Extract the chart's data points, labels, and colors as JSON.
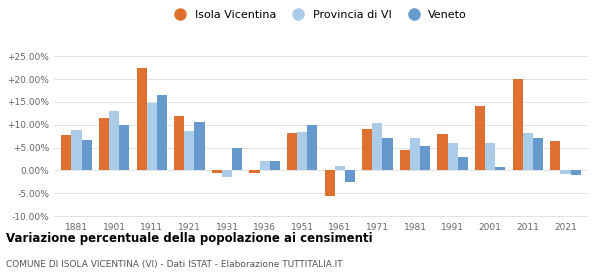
{
  "years": [
    1881,
    1901,
    1911,
    1921,
    1931,
    1936,
    1951,
    1961,
    1971,
    1981,
    1991,
    2001,
    2011,
    2021
  ],
  "isola_vicentina": [
    7.7,
    11.5,
    22.5,
    12.0,
    -0.5,
    -0.5,
    8.2,
    -5.5,
    9.0,
    4.5,
    8.0,
    14.0,
    20.0,
    6.5
  ],
  "provincia_vi": [
    8.8,
    13.0,
    14.8,
    8.7,
    -1.5,
    2.0,
    8.5,
    1.0,
    10.3,
    7.0,
    6.0,
    6.0,
    8.2,
    -0.8
  ],
  "veneto": [
    6.7,
    10.0,
    16.5,
    10.5,
    5.0,
    2.0,
    10.0,
    -2.5,
    7.0,
    5.3,
    3.0,
    0.8,
    7.2,
    -1.0
  ],
  "color_isola": "#E07030",
  "color_provincia": "#AACCE8",
  "color_veneto": "#6699CC",
  "title": "Variazione percentuale della popolazione ai censimenti",
  "subtitle": "COMUNE DI ISOLA VICENTINA (VI) - Dati ISTAT - Elaborazione TUTTITALIA.IT",
  "legend_labels": [
    "Isola Vicentina",
    "Provincia di VI",
    "Veneto"
  ],
  "ylim": [
    -10.5,
    27.5
  ],
  "yticks": [
    -10.0,
    -5.0,
    0.0,
    5.0,
    10.0,
    15.0,
    20.0,
    25.0
  ],
  "bar_width": 0.27
}
